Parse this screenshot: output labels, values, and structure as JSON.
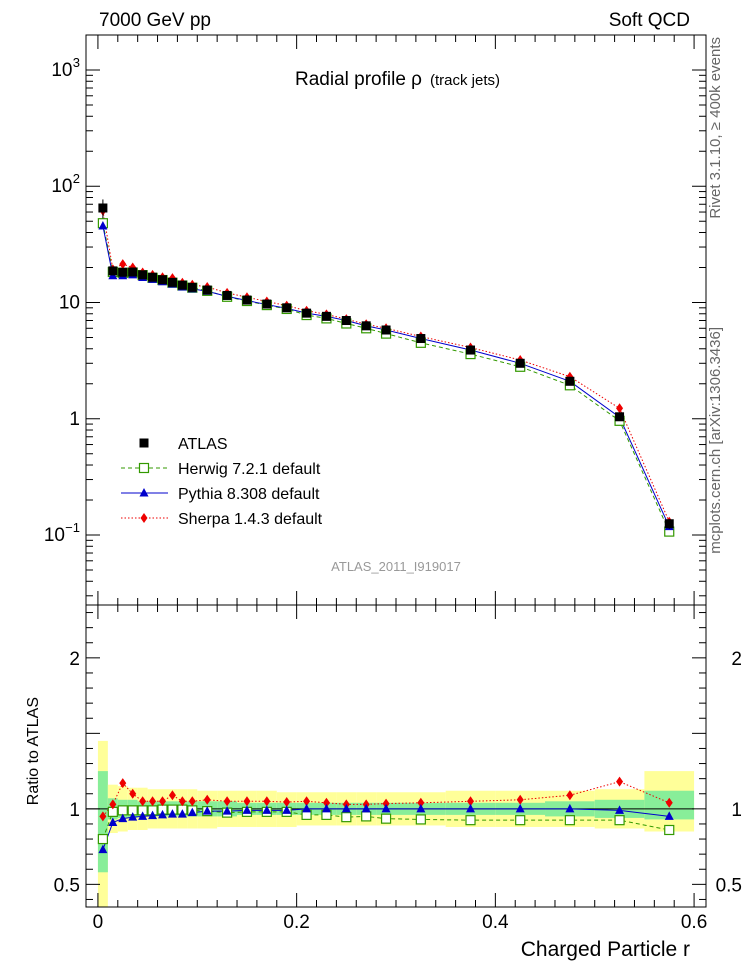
{
  "header": {
    "left": "7000 GeV pp",
    "right": "Soft QCD"
  },
  "side_labels": {
    "rivet": "Rivet 3.1.10, ≥ 400k events",
    "mcplots": "mcplots.cern.ch [arXiv:1306.3436]"
  },
  "chart_data": {
    "type": "line",
    "title": "Radial profile  ρ (track jets)",
    "title_main": "Radial profile  ρ",
    "title_small": "(track jets)",
    "analysis_label": "ATLAS_2011_I919017",
    "xlabel": "Charged Particle r",
    "ylabel_ratio": "Ratio to ATLAS",
    "xlim": [
      -0.012,
      0.612
    ],
    "ylim_main": [
      0.025,
      2000
    ],
    "ylim_ratio": [
      0.35,
      2.35
    ],
    "yscale_main": "log",
    "x_ticks": [
      {
        "v": 0,
        "label": "0"
      },
      {
        "v": 0.2,
        "label": "0.2"
      },
      {
        "v": 0.4,
        "label": "0.4"
      },
      {
        "v": 0.6,
        "label": "0.6"
      }
    ],
    "y_ticks_main": [
      {
        "v": 1000,
        "base": "10",
        "exp": "3"
      },
      {
        "v": 100,
        "base": "10",
        "exp": "2"
      },
      {
        "v": 10,
        "base": "10",
        "exp": ""
      },
      {
        "v": 1,
        "base": "1",
        "exp": ""
      },
      {
        "v": 0.1,
        "base": "10",
        "exp": "−1"
      }
    ],
    "y_ticks_ratio": [
      {
        "v": 2,
        "label": "2"
      },
      {
        "v": 1,
        "label": "1"
      },
      {
        "v": 0.5,
        "label": "0.5"
      }
    ],
    "bins": [
      [
        0,
        0.01
      ],
      [
        0.01,
        0.02
      ],
      [
        0.02,
        0.03
      ],
      [
        0.03,
        0.04
      ],
      [
        0.04,
        0.05
      ],
      [
        0.05,
        0.06
      ],
      [
        0.06,
        0.07
      ],
      [
        0.07,
        0.08
      ],
      [
        0.08,
        0.09
      ],
      [
        0.09,
        0.1
      ],
      [
        0.1,
        0.12
      ],
      [
        0.12,
        0.14
      ],
      [
        0.14,
        0.16
      ],
      [
        0.16,
        0.18
      ],
      [
        0.18,
        0.2
      ],
      [
        0.2,
        0.22
      ],
      [
        0.22,
        0.24
      ],
      [
        0.24,
        0.26
      ],
      [
        0.26,
        0.28
      ],
      [
        0.28,
        0.3
      ],
      [
        0.3,
        0.35
      ],
      [
        0.35,
        0.4
      ],
      [
        0.4,
        0.45
      ],
      [
        0.45,
        0.5
      ],
      [
        0.5,
        0.55
      ],
      [
        0.55,
        0.6
      ]
    ],
    "x": [
      0.005,
      0.015,
      0.025,
      0.035,
      0.045,
      0.055,
      0.065,
      0.075,
      0.085,
      0.095,
      0.11,
      0.13,
      0.15,
      0.17,
      0.19,
      0.21,
      0.23,
      0.25,
      0.27,
      0.29,
      0.325,
      0.375,
      0.425,
      0.475,
      0.525,
      0.575
    ],
    "band_yellow": [
      [
        0.35,
        1.45
      ],
      [
        0.84,
        1.16
      ],
      [
        0.85,
        1.15
      ],
      [
        0.86,
        1.14
      ],
      [
        0.86,
        1.14
      ],
      [
        0.87,
        1.13
      ],
      [
        0.87,
        1.13
      ],
      [
        0.87,
        1.13
      ],
      [
        0.87,
        1.13
      ],
      [
        0.87,
        1.13
      ],
      [
        0.87,
        1.12
      ],
      [
        0.88,
        1.12
      ],
      [
        0.88,
        1.12
      ],
      [
        0.88,
        1.12
      ],
      [
        0.88,
        1.11
      ],
      [
        0.89,
        1.11
      ],
      [
        0.89,
        1.11
      ],
      [
        0.89,
        1.11
      ],
      [
        0.89,
        1.11
      ],
      [
        0.89,
        1.11
      ],
      [
        0.89,
        1.11
      ],
      [
        0.88,
        1.12
      ],
      [
        0.88,
        1.12
      ],
      [
        0.88,
        1.12
      ],
      [
        0.87,
        1.13
      ],
      [
        0.85,
        1.25
      ]
    ],
    "band_green": [
      [
        0.58,
        1.25
      ],
      [
        0.93,
        1.07
      ],
      [
        0.94,
        1.06
      ],
      [
        0.94,
        1.06
      ],
      [
        0.95,
        1.05
      ],
      [
        0.95,
        1.05
      ],
      [
        0.95,
        1.05
      ],
      [
        0.95,
        1.05
      ],
      [
        0.95,
        1.05
      ],
      [
        0.95,
        1.05
      ],
      [
        0.95,
        1.05
      ],
      [
        0.95,
        1.05
      ],
      [
        0.96,
        1.04
      ],
      [
        0.96,
        1.04
      ],
      [
        0.96,
        1.04
      ],
      [
        0.96,
        1.04
      ],
      [
        0.96,
        1.04
      ],
      [
        0.96,
        1.04
      ],
      [
        0.96,
        1.04
      ],
      [
        0.96,
        1.04
      ],
      [
        0.96,
        1.04
      ],
      [
        0.96,
        1.04
      ],
      [
        0.96,
        1.04
      ],
      [
        0.95,
        1.05
      ],
      [
        0.94,
        1.06
      ],
      [
        0.93,
        1.12
      ]
    ],
    "series": [
      {
        "name": "ATLAS",
        "color": "#000000",
        "marker": "square-filled",
        "line": "none",
        "values": [
          65,
          18.7,
          18.2,
          18.3,
          17.3,
          16.5,
          15.7,
          14.9,
          14.1,
          13.5,
          12.8,
          11.5,
          10.5,
          9.7,
          9.0,
          8.1,
          7.6,
          7.0,
          6.3,
          5.8,
          4.9,
          3.9,
          3.0,
          2.1,
          1.04,
          0.125
        ],
        "errors": [
          12,
          0.8,
          0.7,
          0.7,
          0.6,
          0.6,
          0.6,
          0.5,
          0.5,
          0.5,
          0.4,
          0.4,
          0.4,
          0.3,
          0.3,
          0.3,
          0.3,
          0.3,
          0.2,
          0.2,
          0.2,
          0.15,
          0.12,
          0.09,
          0.06,
          0.012
        ]
      },
      {
        "name": "Herwig 7.2.1 default",
        "color": "#339900",
        "marker": "square-open",
        "line": "dashed",
        "values": [
          48.1,
          18.3,
          18.0,
          18.1,
          17.2,
          16.3,
          15.6,
          14.8,
          14.0,
          13.4,
          12.6,
          11.2,
          10.3,
          9.5,
          8.8,
          7.8,
          7.3,
          6.6,
          6.0,
          5.4,
          4.5,
          3.6,
          2.8,
          1.94,
          0.96,
          0.107
        ],
        "ratio": [
          0.8,
          0.98,
          0.99,
          0.99,
          0.99,
          0.99,
          0.995,
          0.995,
          0.995,
          0.99,
          0.985,
          0.975,
          0.98,
          0.98,
          0.98,
          0.96,
          0.96,
          0.945,
          0.95,
          0.935,
          0.93,
          0.925,
          0.925,
          0.925,
          0.925,
          0.86
        ]
      },
      {
        "name": "Pythia 8.308 default",
        "color": "#0000cc",
        "marker": "triangle-filled",
        "line": "solid",
        "values": [
          45.5,
          17.0,
          17.0,
          17.3,
          16.4,
          15.8,
          15.1,
          14.4,
          13.6,
          13.1,
          12.5,
          11.3,
          10.4,
          9.6,
          8.9,
          8.1,
          7.6,
          7.0,
          6.3,
          5.8,
          4.9,
          3.9,
          3.0,
          2.1,
          1.03,
          0.118
        ],
        "ratio": [
          0.73,
          0.91,
          0.935,
          0.945,
          0.95,
          0.955,
          0.96,
          0.965,
          0.965,
          0.975,
          0.985,
          0.985,
          0.99,
          0.99,
          0.99,
          1.0,
          1.0,
          1.0,
          1.0,
          1.0,
          1.0,
          1.0,
          1.0,
          1.0,
          0.99,
          0.95
        ]
      },
      {
        "name": "Sherpa 1.4.3 default",
        "color": "#ee0000",
        "marker": "diamond-filled",
        "line": "dotted",
        "values": [
          61.5,
          19.3,
          21.4,
          20.0,
          18.1,
          17.3,
          16.5,
          16.2,
          14.8,
          14.2,
          13.6,
          12.1,
          11.1,
          10.2,
          9.4,
          8.5,
          7.9,
          7.2,
          6.5,
          6.0,
          5.1,
          4.1,
          3.2,
          2.3,
          1.23,
          0.13
        ],
        "ratio": [
          0.95,
          1.03,
          1.17,
          1.1,
          1.05,
          1.05,
          1.05,
          1.09,
          1.05,
          1.05,
          1.06,
          1.05,
          1.05,
          1.05,
          1.045,
          1.05,
          1.04,
          1.03,
          1.03,
          1.035,
          1.04,
          1.05,
          1.06,
          1.09,
          1.18,
          1.04
        ]
      }
    ]
  }
}
